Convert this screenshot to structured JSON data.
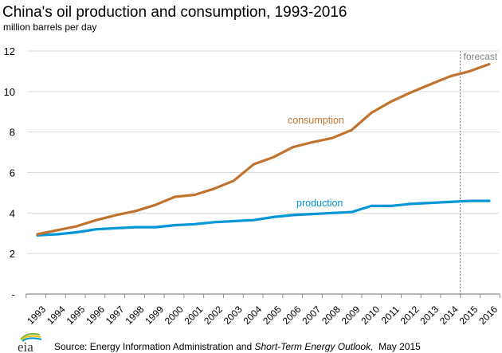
{
  "chart_data": {
    "type": "line",
    "title": "China's oil production and consumption, 1993-2016",
    "subtitle": "million barrels per day",
    "xlabel": "",
    "ylabel": "million barrels per day",
    "x": [
      "1993",
      "1994",
      "1995",
      "1996",
      "1997",
      "1998",
      "1999",
      "2000",
      "2001",
      "2002",
      "2003",
      "2004",
      "2005",
      "2006",
      "2007",
      "2008",
      "2009",
      "2010",
      "2011",
      "2012",
      "2013",
      "2014",
      "2015",
      "2016"
    ],
    "ylim": [
      0,
      12
    ],
    "yticks": [
      0,
      2,
      4,
      6,
      8,
      10,
      12
    ],
    "ytick_labels": [
      "-",
      "2",
      "4",
      "6",
      "8",
      "10",
      "12"
    ],
    "grid": true,
    "series": [
      {
        "name": "consumption",
        "color": "#C0732E",
        "values": [
          2.95,
          3.15,
          3.35,
          3.65,
          3.9,
          4.1,
          4.4,
          4.8,
          4.9,
          5.2,
          5.6,
          6.4,
          6.75,
          7.25,
          7.5,
          7.7,
          8.1,
          8.95,
          9.5,
          9.95,
          10.35,
          10.75,
          11.0,
          11.35
        ]
      },
      {
        "name": "production",
        "color": "#0096D7",
        "values": [
          2.9,
          2.95,
          3.05,
          3.2,
          3.25,
          3.3,
          3.3,
          3.4,
          3.45,
          3.55,
          3.6,
          3.65,
          3.8,
          3.9,
          3.95,
          4.0,
          4.05,
          4.35,
          4.35,
          4.45,
          4.5,
          4.55,
          4.6,
          4.6
        ]
      }
    ],
    "annotations": [
      {
        "text": "consumption",
        "series": "consumption"
      },
      {
        "text": "production",
        "series": "production"
      },
      {
        "text": "forecast",
        "type": "vertical-divider",
        "between": [
          "2014",
          "2015"
        ]
      }
    ],
    "legend": "inline-labels"
  },
  "footer": {
    "logo_text": "eia",
    "source_prefix": "Source: Energy Information Administration and ",
    "source_italic": "Short-Term Energy Outlook,",
    "source_suffix": "  May 2015"
  }
}
